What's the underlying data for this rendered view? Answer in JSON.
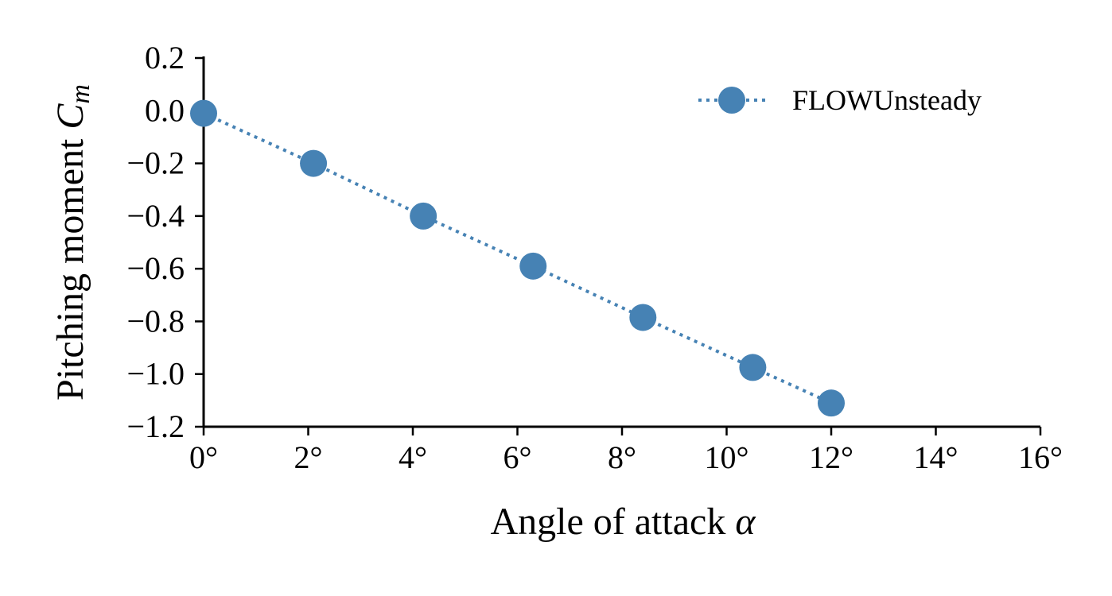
{
  "colors": {
    "series": "#4682b4",
    "axis": "#000000"
  },
  "chart_data": {
    "type": "line",
    "xlabel": "Angle of attack α",
    "ylabel": "Pitching moment Cm",
    "xlim": [
      0,
      16
    ],
    "ylim": [
      -1.2,
      0.2
    ],
    "xticks": [
      "0°",
      "2°",
      "4°",
      "6°",
      "8°",
      "10°",
      "12°",
      "14°",
      "16°"
    ],
    "xtick_values": [
      0,
      2,
      4,
      6,
      8,
      10,
      12,
      14,
      16
    ],
    "yticks": [
      "0.2",
      "0.0",
      "−0.2",
      "−0.4",
      "−0.6",
      "−0.8",
      "−1.0",
      "−1.2"
    ],
    "ytick_values": [
      0.2,
      0.0,
      -0.2,
      -0.4,
      -0.6,
      -0.8,
      -1.0,
      -1.2
    ],
    "grid": false,
    "legend_position": "top-right",
    "series": [
      {
        "name": "FLOWUnsteady",
        "line_style": "dotted",
        "marker": "circle",
        "x": [
          0,
          2.1,
          4.2,
          6.3,
          8.4,
          10.5,
          12.0
        ],
        "y": [
          -0.01,
          -0.2,
          -0.4,
          -0.59,
          -0.785,
          -0.975,
          -1.11
        ]
      }
    ]
  }
}
